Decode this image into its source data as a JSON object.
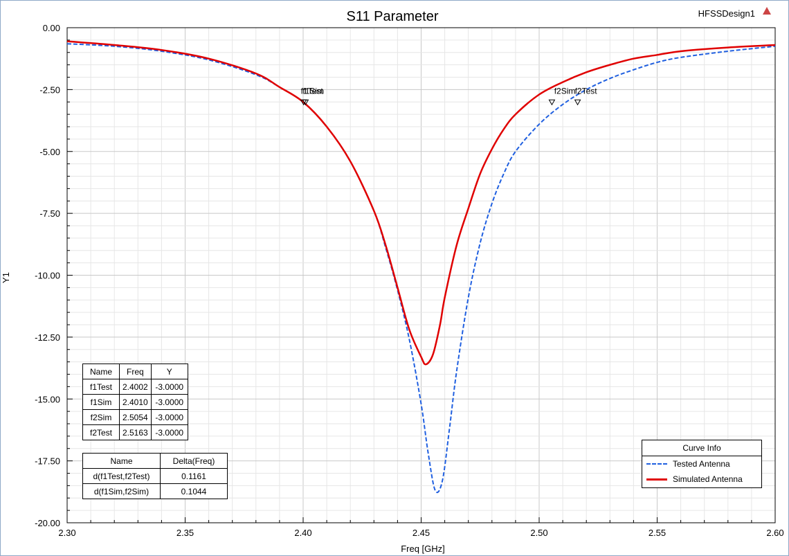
{
  "chart_data": {
    "type": "line",
    "title": "S11 Parameter",
    "design_label": "HFSSDesign1",
    "xlabel": "Freq [GHz]",
    "ylabel": "Y1",
    "xlim": [
      2.3,
      2.6
    ],
    "ylim": [
      -20.0,
      0.0
    ],
    "x_ticks": [
      "2.30",
      "2.35",
      "2.40",
      "2.45",
      "2.50",
      "2.55",
      "2.60"
    ],
    "y_ticks": [
      "0.00",
      "-2.50",
      "-5.00",
      "-7.50",
      "-10.00",
      "-12.50",
      "-15.00",
      "-17.50",
      "-20.00"
    ],
    "grid": true,
    "legend_position": "bottom-right",
    "series": [
      {
        "name": "Tested Antenna",
        "color": "#1f5fe0",
        "style": "dashed",
        "x": [
          2.3,
          2.32,
          2.34,
          2.36,
          2.38,
          2.39,
          2.4,
          2.41,
          2.42,
          2.43,
          2.435,
          2.44,
          2.445,
          2.45,
          2.453,
          2.456,
          2.459,
          2.462,
          2.465,
          2.47,
          2.475,
          2.48,
          2.485,
          2.49,
          2.5,
          2.51,
          2.52,
          2.53,
          2.54,
          2.55,
          2.56,
          2.58,
          2.6
        ],
        "y": [
          -0.65,
          -0.75,
          -0.95,
          -1.3,
          -1.9,
          -2.4,
          -3.0,
          -4.0,
          -5.4,
          -7.4,
          -8.9,
          -10.6,
          -12.6,
          -15.2,
          -17.2,
          -18.7,
          -18.3,
          -16.2,
          -13.9,
          -10.9,
          -8.7,
          -7.1,
          -5.9,
          -5.0,
          -3.9,
          -3.1,
          -2.5,
          -2.05,
          -1.7,
          -1.4,
          -1.2,
          -0.95,
          -0.75
        ]
      },
      {
        "name": "Simulated Antenna",
        "color": "#e00000",
        "style": "solid",
        "x": [
          2.3,
          2.32,
          2.34,
          2.36,
          2.38,
          2.39,
          2.4,
          2.41,
          2.42,
          2.43,
          2.435,
          2.44,
          2.445,
          2.45,
          2.452,
          2.455,
          2.458,
          2.46,
          2.465,
          2.47,
          2.475,
          2.48,
          2.485,
          2.49,
          2.5,
          2.51,
          2.52,
          2.53,
          2.54,
          2.55,
          2.56,
          2.58,
          2.6
        ],
        "y": [
          -0.55,
          -0.7,
          -0.9,
          -1.25,
          -1.85,
          -2.4,
          -3.0,
          -4.0,
          -5.4,
          -7.4,
          -8.8,
          -10.5,
          -12.2,
          -13.3,
          -13.6,
          -13.2,
          -12.0,
          -10.9,
          -8.8,
          -7.3,
          -5.9,
          -4.9,
          -4.1,
          -3.5,
          -2.7,
          -2.2,
          -1.8,
          -1.5,
          -1.25,
          -1.1,
          -0.95,
          -0.8,
          -0.7
        ]
      }
    ],
    "markers": [
      {
        "label": "f1Test",
        "x": 2.4002,
        "y": -3.0
      },
      {
        "label": "f1Sim",
        "x": 2.401,
        "y": -3.0
      },
      {
        "label": "f2Sim",
        "x": 2.5054,
        "y": -3.0
      },
      {
        "label": "f2Test",
        "x": 2.5163,
        "y": -3.0
      }
    ],
    "marker_overlap_label": "f1Test",
    "marker_table": {
      "headers": [
        "Name",
        "Freq",
        "Y"
      ],
      "rows": [
        [
          "f1Test",
          "2.4002",
          "-3.0000"
        ],
        [
          "f1Sim",
          "2.4010",
          "-3.0000"
        ],
        [
          "f2Sim",
          "2.5054",
          "-3.0000"
        ],
        [
          "f2Test",
          "2.5163",
          "-3.0000"
        ]
      ]
    },
    "delta_table": {
      "headers": [
        "Name",
        "Delta(Freq)"
      ],
      "rows": [
        [
          "d(f1Test,f2Test)",
          "0.1161"
        ],
        [
          "d(f1Sim,f2Sim)",
          "0.1044"
        ]
      ]
    },
    "legend_title": "Curve Info"
  }
}
